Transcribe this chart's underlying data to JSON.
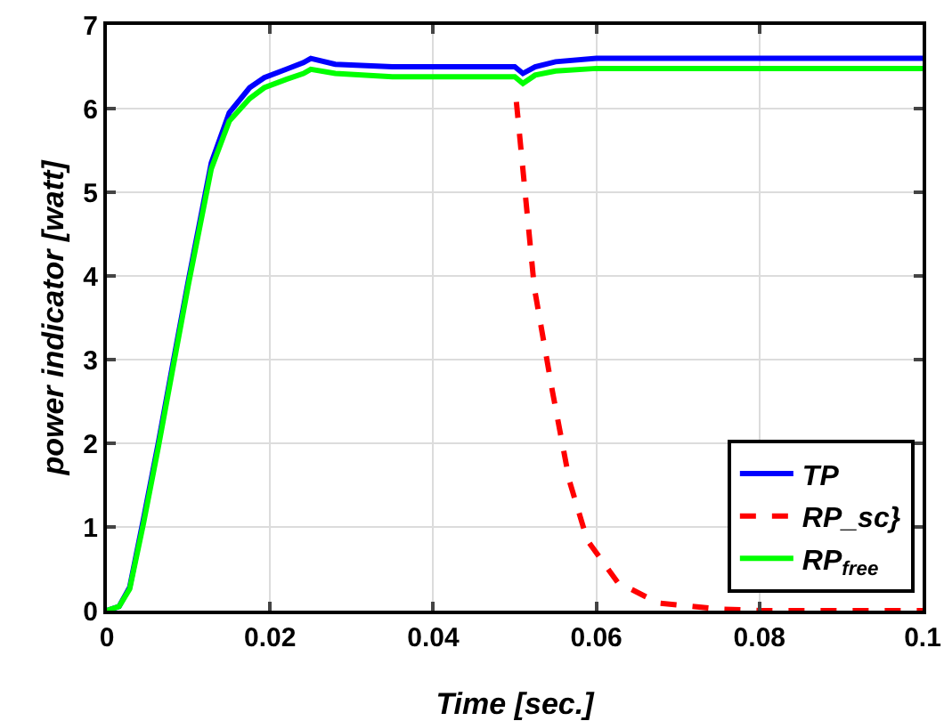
{
  "chart_data": {
    "type": "line",
    "xlabel": "Time [sec.]",
    "ylabel": "power indicator [watt]",
    "xlim": [
      0,
      0.1
    ],
    "ylim": [
      0,
      7
    ],
    "xticks": [
      0,
      0.02,
      0.04,
      0.06,
      0.08,
      0.1
    ],
    "yticks": [
      0,
      1,
      2,
      3,
      4,
      5,
      6,
      7
    ],
    "grid": true,
    "legend": "bottom right",
    "marker": "none",
    "series": [
      {
        "name": "TP",
        "color": "#0000ff",
        "line_style": "solid",
        "x": [
          0,
          0.0015,
          0.0028,
          0.0045,
          0.0063,
          0.008,
          0.01,
          0.0128,
          0.015,
          0.0175,
          0.0193,
          0.022,
          0.0241,
          0.025,
          0.028,
          0.035,
          0.045,
          0.05,
          0.051,
          0.0525,
          0.055,
          0.06,
          0.07,
          0.08,
          0.1
        ],
        "values": [
          0,
          0.05,
          0.28,
          1.1,
          2.0,
          2.9,
          3.95,
          5.35,
          5.95,
          6.25,
          6.37,
          6.47,
          6.55,
          6.6,
          6.53,
          6.5,
          6.5,
          6.5,
          6.42,
          6.5,
          6.56,
          6.6,
          6.6,
          6.6,
          6.6
        ]
      },
      {
        "name": "RP_sc}",
        "color": "#ff0000",
        "line_style": "dashed",
        "x": [
          0.0502,
          0.0524,
          0.0546,
          0.0567,
          0.0589,
          0.0626,
          0.0676,
          0.075,
          0.08,
          0.1
        ],
        "values": [
          6.08,
          3.86,
          2.63,
          1.55,
          0.84,
          0.34,
          0.09,
          0.02,
          0,
          0
        ]
      },
      {
        "name": "RP$_{free}$",
        "color": "#00ff00",
        "line_style": "solid",
        "x": [
          0,
          0.0015,
          0.0028,
          0.0045,
          0.0063,
          0.008,
          0.01,
          0.0128,
          0.015,
          0.0175,
          0.0193,
          0.022,
          0.0241,
          0.025,
          0.028,
          0.035,
          0.045,
          0.05,
          0.051,
          0.0525,
          0.055,
          0.06,
          0.07,
          0.08,
          0.1
        ],
        "values": [
          0,
          0.05,
          0.26,
          1.05,
          1.95,
          2.85,
          3.9,
          5.28,
          5.85,
          6.12,
          6.25,
          6.35,
          6.42,
          6.47,
          6.42,
          6.38,
          6.38,
          6.38,
          6.3,
          6.4,
          6.45,
          6.48,
          6.48,
          6.48,
          6.48
        ]
      }
    ]
  }
}
